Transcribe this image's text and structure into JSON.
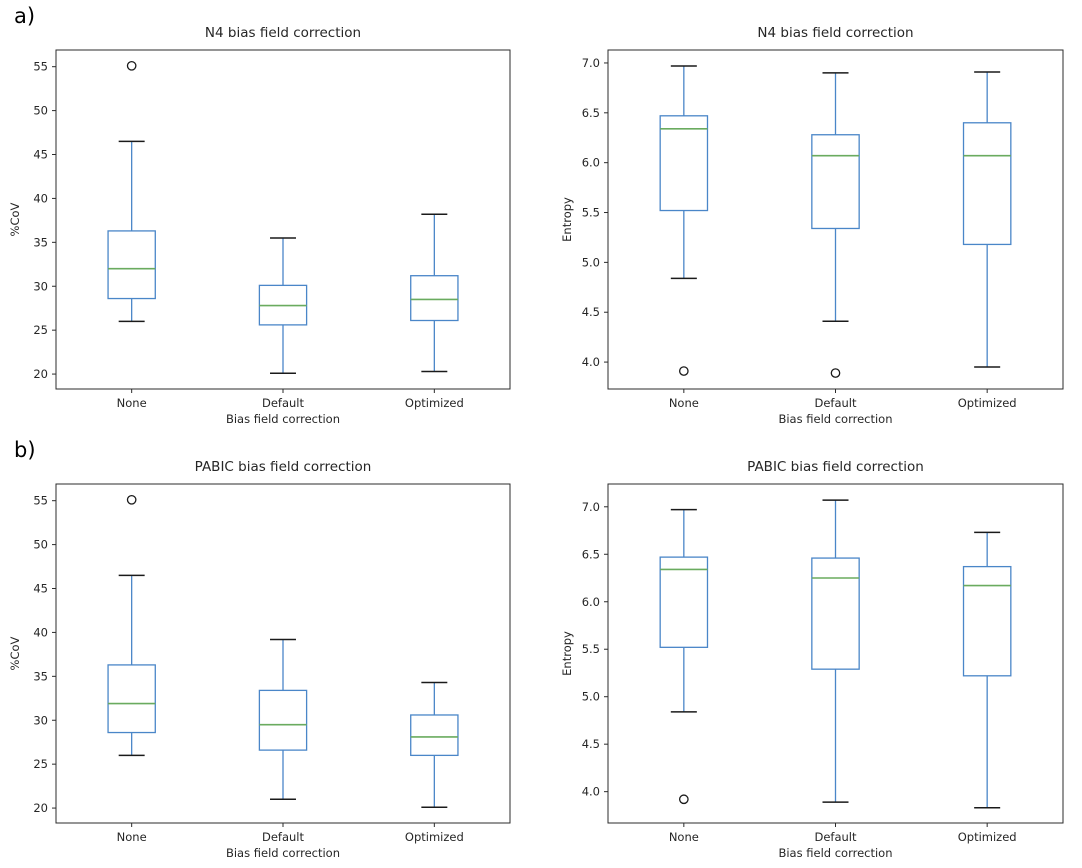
{
  "figure": {
    "panel_labels": {
      "a": "a)",
      "b": "b)"
    }
  },
  "colors": {
    "box_line": "#4a86c8",
    "median_line": "#6aab5f",
    "cap_line": "#1a1a1a",
    "outlier_edge": "#1a1a1a",
    "axis": "#2b2b2b",
    "text": "#262626",
    "background": "#ffffff"
  },
  "chart_data": [
    {
      "type": "box",
      "panel": "a",
      "title": "N4 bias field correction",
      "xlabel": "Bias field correction",
      "ylabel": "%CoV",
      "categories": [
        "None",
        "Default",
        "Optimized"
      ],
      "ylim": [
        18.3,
        56.9
      ],
      "yticks": [
        20,
        25,
        30,
        35,
        40,
        45,
        50,
        55
      ],
      "ytick_labels": [
        "20",
        "25",
        "30",
        "35",
        "40",
        "45",
        "50",
        "55"
      ],
      "grid": false,
      "legend": null,
      "boxes": [
        {
          "category": "None",
          "whisker_low": 26.0,
          "q1": 28.6,
          "median": 32.0,
          "q3": 36.3,
          "whisker_high": 46.5,
          "outliers": [
            55.1
          ]
        },
        {
          "category": "Default",
          "whisker_low": 20.1,
          "q1": 25.6,
          "median": 27.8,
          "q3": 30.1,
          "whisker_high": 35.5,
          "outliers": []
        },
        {
          "category": "Optimized",
          "whisker_low": 20.3,
          "q1": 26.1,
          "median": 28.5,
          "q3": 31.2,
          "whisker_high": 38.2,
          "outliers": []
        }
      ]
    },
    {
      "type": "box",
      "panel": "a",
      "title": "N4 bias field correction",
      "xlabel": "Bias field correction",
      "ylabel": "Entropy",
      "categories": [
        "None",
        "Default",
        "Optimized"
      ],
      "ylim": [
        3.73,
        7.13
      ],
      "yticks": [
        4.0,
        4.5,
        5.0,
        5.5,
        6.0,
        6.5,
        7.0
      ],
      "ytick_labels": [
        "4.0",
        "4.5",
        "5.0",
        "5.5",
        "6.0",
        "6.5",
        "7.0"
      ],
      "grid": false,
      "legend": null,
      "boxes": [
        {
          "category": "None",
          "whisker_low": 4.84,
          "q1": 5.52,
          "median": 6.34,
          "q3": 6.47,
          "whisker_high": 6.97,
          "outliers": [
            3.91
          ]
        },
        {
          "category": "Default",
          "whisker_low": 4.41,
          "q1": 5.34,
          "median": 6.07,
          "q3": 6.28,
          "whisker_high": 6.9,
          "outliers": [
            3.89
          ]
        },
        {
          "category": "Optimized",
          "whisker_low": 3.95,
          "q1": 5.18,
          "median": 6.07,
          "q3": 6.4,
          "whisker_high": 6.91,
          "outliers": []
        }
      ]
    },
    {
      "type": "box",
      "panel": "b",
      "title": "PABIC bias field correction",
      "xlabel": "Bias field correction",
      "ylabel": "%CoV",
      "categories": [
        "None",
        "Default",
        "Optimized"
      ],
      "ylim": [
        18.3,
        56.9
      ],
      "yticks": [
        20,
        25,
        30,
        35,
        40,
        45,
        50,
        55
      ],
      "ytick_labels": [
        "20",
        "25",
        "30",
        "35",
        "40",
        "45",
        "50",
        "55"
      ],
      "grid": false,
      "legend": null,
      "boxes": [
        {
          "category": "None",
          "whisker_low": 26.0,
          "q1": 28.6,
          "median": 31.9,
          "q3": 36.3,
          "whisker_high": 46.5,
          "outliers": [
            55.1
          ]
        },
        {
          "category": "Default",
          "whisker_low": 21.0,
          "q1": 26.6,
          "median": 29.5,
          "q3": 33.4,
          "whisker_high": 39.2,
          "outliers": []
        },
        {
          "category": "Optimized",
          "whisker_low": 20.1,
          "q1": 26.0,
          "median": 28.1,
          "q3": 30.6,
          "whisker_high": 34.3,
          "outliers": []
        }
      ]
    },
    {
      "type": "box",
      "panel": "b",
      "title": "PABIC bias field correction",
      "xlabel": "Bias field correction",
      "ylabel": "Entropy",
      "categories": [
        "None",
        "Default",
        "Optimized"
      ],
      "ylim": [
        3.67,
        7.24
      ],
      "yticks": [
        4.0,
        4.5,
        5.0,
        5.5,
        6.0,
        6.5,
        7.0
      ],
      "ytick_labels": [
        "4.0",
        "4.5",
        "5.0",
        "5.5",
        "6.0",
        "6.5",
        "7.0"
      ],
      "grid": false,
      "legend": null,
      "boxes": [
        {
          "category": "None",
          "whisker_low": 4.84,
          "q1": 5.52,
          "median": 6.34,
          "q3": 6.47,
          "whisker_high": 6.97,
          "outliers": [
            3.92
          ]
        },
        {
          "category": "Default",
          "whisker_low": 3.89,
          "q1": 5.29,
          "median": 6.25,
          "q3": 6.46,
          "whisker_high": 7.07,
          "outliers": []
        },
        {
          "category": "Optimized",
          "whisker_low": 3.83,
          "q1": 5.22,
          "median": 6.17,
          "q3": 6.37,
          "whisker_high": 6.73,
          "outliers": []
        }
      ]
    }
  ]
}
